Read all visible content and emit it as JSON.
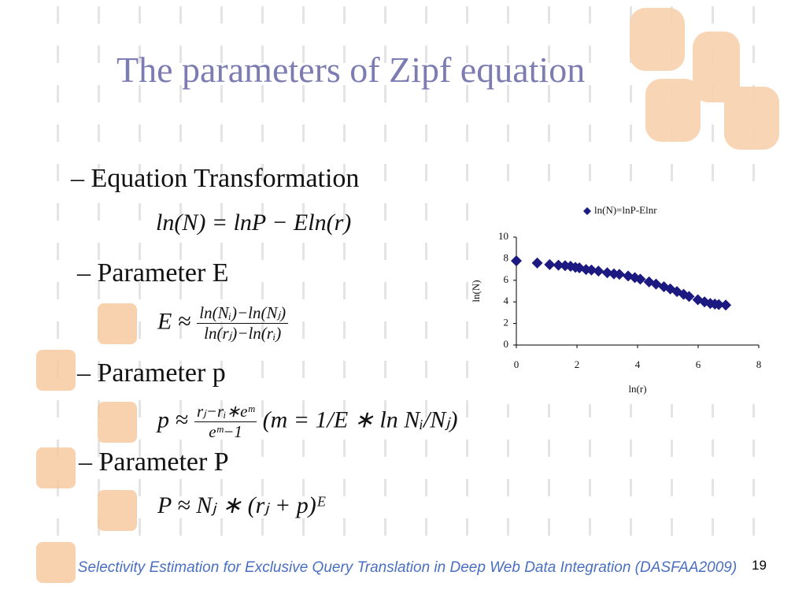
{
  "title": "The parameters of Zipf equation",
  "bullets": [
    {
      "heading": "– Equation Transformation",
      "formula": "ln(N) = lnP − Eln(r)"
    },
    {
      "heading": "– Parameter E",
      "formula": {
        "lhs": "E ≈",
        "numerator": "ln(Nᵢ)−ln(Nⱼ)",
        "denominator": "ln(rⱼ)−ln(rᵢ)"
      }
    },
    {
      "heading": "– Parameter p",
      "formula": {
        "lhs": "p ≈",
        "numerator": "rⱼ−rᵢ∗eᵐ",
        "denominator": "eᵐ−1",
        "rest": "(m = 1/E ∗ ln Nᵢ/Nⱼ)"
      }
    },
    {
      "heading": "– Parameter P",
      "formula": "P ≈ Nⱼ ∗ (rⱼ + p)ᴱ"
    }
  ],
  "footer": "Selectivity Estimation for Exclusive Query Translation in Deep Web Data Integration (DASFAA2009)",
  "page_number": "19",
  "chart_data": {
    "type": "scatter",
    "x_label": "ln(r)",
    "y_label": "ln(N)",
    "x": [
      0,
      0.69,
      1.1,
      1.39,
      1.61,
      1.79,
      1.95,
      2.08,
      2.3,
      2.48,
      2.71,
      3.0,
      3.22,
      3.4,
      3.69,
      3.91,
      4.09,
      4.38,
      4.61,
      4.87,
      5.08,
      5.3,
      5.52,
      5.7,
      5.99,
      6.21,
      6.4,
      6.55,
      6.68,
      6.91
    ],
    "series": [
      {
        "name": "ln(N)=lnP-Elnr",
        "color": "#1c1a80",
        "values": [
          7.8,
          7.6,
          7.45,
          7.4,
          7.35,
          7.3,
          7.2,
          7.15,
          7.0,
          6.95,
          6.85,
          6.7,
          6.6,
          6.55,
          6.4,
          6.25,
          6.1,
          5.85,
          5.65,
          5.4,
          5.2,
          4.95,
          4.7,
          4.5,
          4.2,
          4.0,
          3.85,
          3.8,
          3.75,
          3.7
        ]
      }
    ],
    "xlim": [
      0,
      8
    ],
    "xticks": [
      0,
      2,
      4,
      6,
      8
    ],
    "ylim": [
      0,
      10
    ],
    "yticks": [
      0,
      2,
      4,
      6,
      8,
      10
    ],
    "legend": "top"
  }
}
